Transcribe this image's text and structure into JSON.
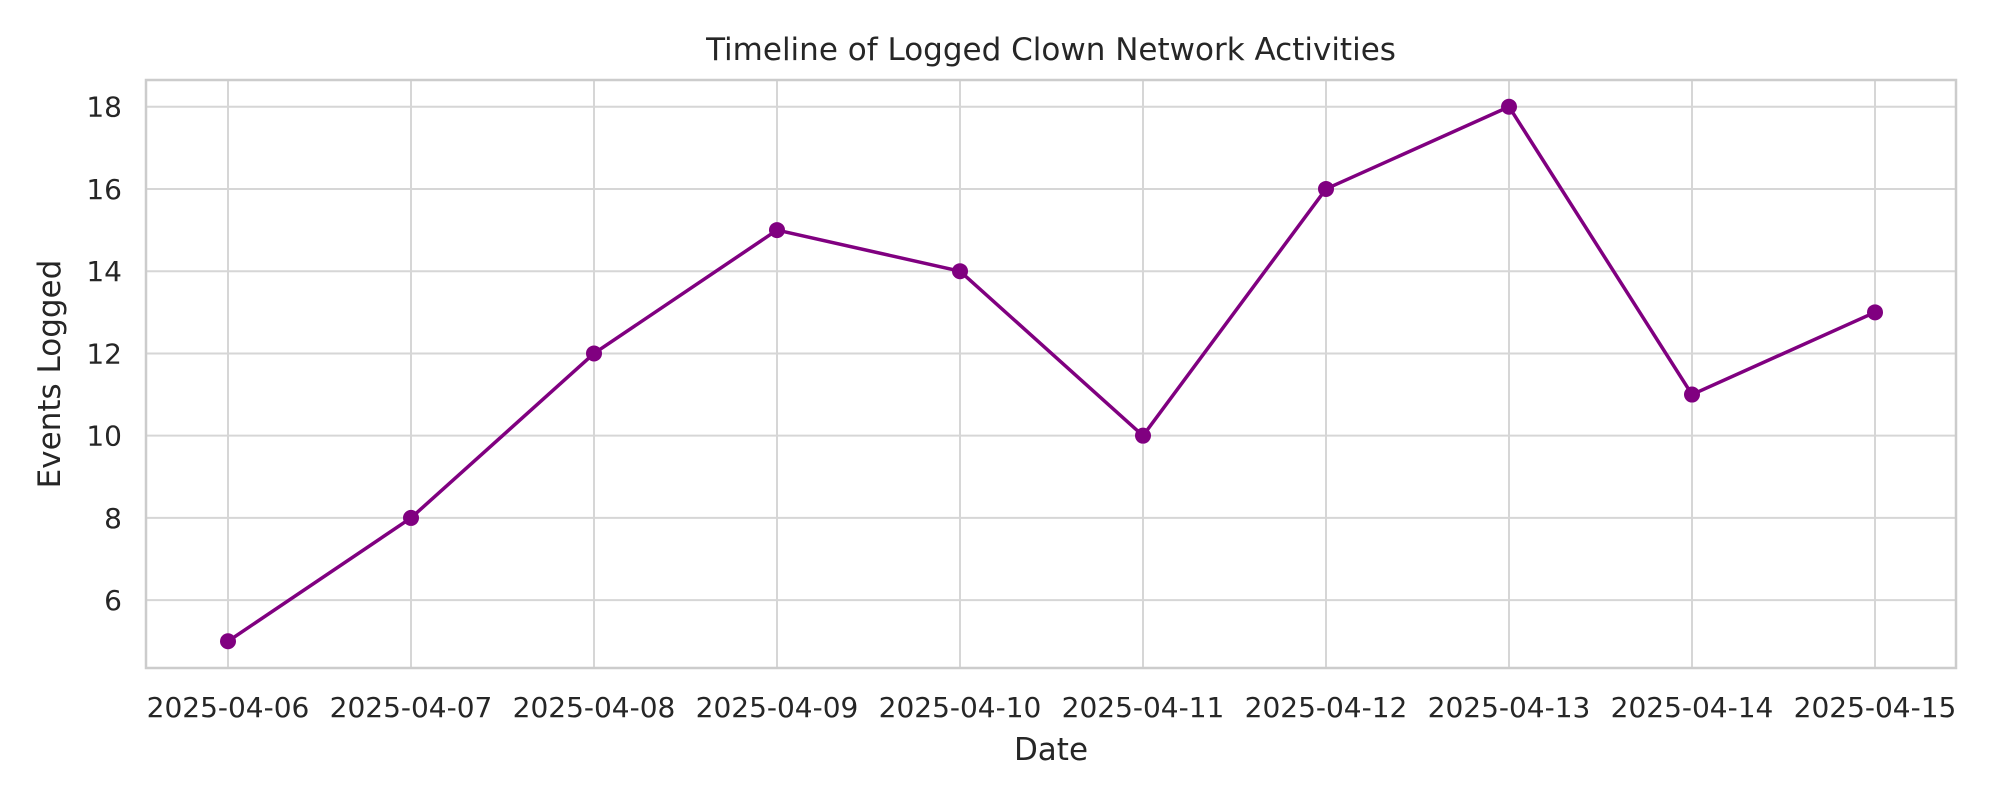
{
  "chart_data": {
    "type": "line",
    "title": "Timeline of Logged Clown Network Activities",
    "xlabel": "Date",
    "ylabel": "Events Logged",
    "x": [
      "2025-04-06",
      "2025-04-07",
      "2025-04-08",
      "2025-04-09",
      "2025-04-10",
      "2025-04-11",
      "2025-04-12",
      "2025-04-13",
      "2025-04-14",
      "2025-04-15"
    ],
    "series": [
      {
        "values": [
          5,
          8,
          12,
          15,
          14,
          10,
          16,
          18,
          11,
          13
        ],
        "color": "#800080",
        "marker": "circle"
      }
    ],
    "y_ticks": [
      6,
      8,
      10,
      12,
      14,
      16,
      18
    ],
    "ylim": [
      4.35,
      18.65
    ],
    "grid": true,
    "legend": "none"
  }
}
